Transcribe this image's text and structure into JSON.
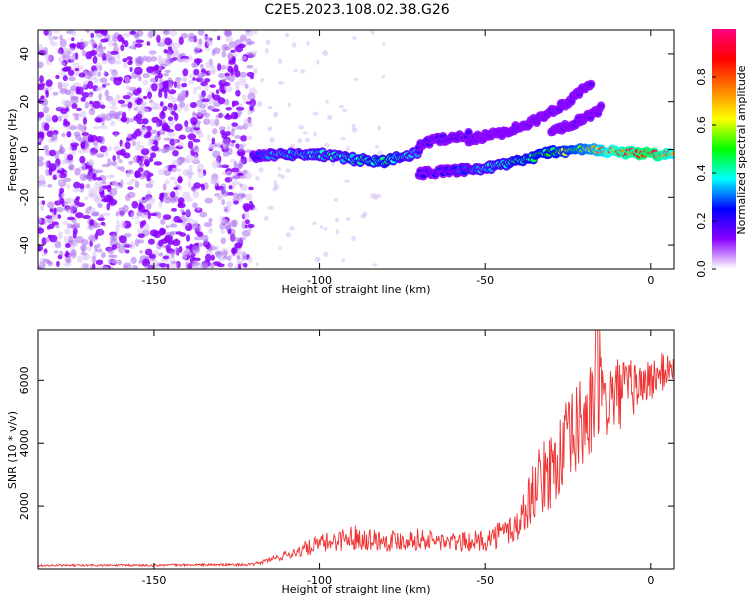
{
  "title": "C2E5.2023.108.02.38.G26",
  "colors": {
    "snr_line": "#ee3333",
    "spectrogram_noise": "#8a2be2",
    "colormap": [
      "#ffffff",
      "#8a00ff",
      "#0000ff",
      "#00ffff",
      "#00ff00",
      "#ffff00",
      "#ff7f00",
      "#ff0000",
      "#ff0080"
    ]
  },
  "chart_data": [
    {
      "type": "heatmap",
      "title": "C2E5.2023.108.02.38.G26",
      "xlabel": "Height of straight line (km)",
      "ylabel": "Frequency (Hz)",
      "xlim": [
        -185,
        7
      ],
      "ylim": [
        -50,
        50
      ],
      "xticks": [
        -150,
        -100,
        -50,
        0
      ],
      "yticks": [
        -40,
        -20,
        0,
        20,
        40
      ],
      "colorbar": {
        "label": "Normalized spectral amplitude",
        "range": [
          0,
          1
        ],
        "ticks": [
          0.0,
          0.2,
          0.4,
          0.6,
          0.8
        ]
      },
      "noise_region_x": [
        -185,
        -120
      ],
      "signal_tracks": [
        {
          "x": [
            -120,
            -110,
            -100,
            -90,
            -80,
            -75,
            -70
          ],
          "y": [
            -3,
            -2,
            -2,
            -4,
            -5,
            -3,
            -1
          ],
          "amplitude": [
            0.25,
            0.35,
            0.35,
            0.4,
            0.45,
            0.4,
            0.3
          ]
        },
        {
          "x": [
            -70,
            -65,
            -60,
            -55
          ],
          "y": [
            2,
            4,
            5,
            6
          ],
          "amplitude": [
            0.2,
            0.2,
            0.2,
            0.2
          ]
        },
        {
          "x": [
            -70,
            -60,
            -50,
            -40,
            -30,
            -20,
            -10,
            0,
            7
          ],
          "y": [
            -10,
            -9,
            -8,
            -5,
            -1,
            0,
            -1,
            -2,
            -2
          ],
          "amplitude": [
            0.2,
            0.25,
            0.35,
            0.45,
            0.5,
            0.6,
            0.8,
            0.9,
            0.75
          ]
        },
        {
          "x": [
            -55,
            -45,
            -35,
            -25,
            -18
          ],
          "y": [
            4,
            7,
            12,
            20,
            28
          ],
          "amplitude": [
            0.15,
            0.15,
            0.15,
            0.15,
            0.15
          ]
        },
        {
          "x": [
            -30,
            -25,
            -20,
            -15
          ],
          "y": [
            8,
            10,
            13,
            17
          ],
          "amplitude": [
            0.15,
            0.15,
            0.15,
            0.15
          ]
        }
      ]
    },
    {
      "type": "line",
      "xlabel": "Height of straight line (km)",
      "ylabel": "SNR (10 * v/v)",
      "xlim": [
        -185,
        7
      ],
      "ylim": [
        0,
        7600
      ],
      "xticks": [
        -150,
        -100,
        -50,
        0
      ],
      "yticks": [
        2000,
        4000,
        6000
      ],
      "envelope_x": [
        -185,
        -150,
        -120,
        -110,
        -100,
        -90,
        -80,
        -70,
        -60,
        -50,
        -40,
        -35,
        -30,
        -25,
        -20,
        -15,
        -10,
        -5,
        0,
        7
      ],
      "envelope_y": [
        100,
        110,
        130,
        400,
        700,
        900,
        800,
        850,
        750,
        800,
        1200,
        2300,
        2800,
        3500,
        4300,
        4800,
        5200,
        5500,
        5800,
        6300
      ],
      "envelope_spread": [
        70,
        70,
        80,
        300,
        600,
        800,
        700,
        700,
        600,
        700,
        1200,
        2000,
        2600,
        3000,
        3200,
        3000,
        2400,
        1800,
        1400,
        1200
      ],
      "peak_value": 7600
    }
  ]
}
